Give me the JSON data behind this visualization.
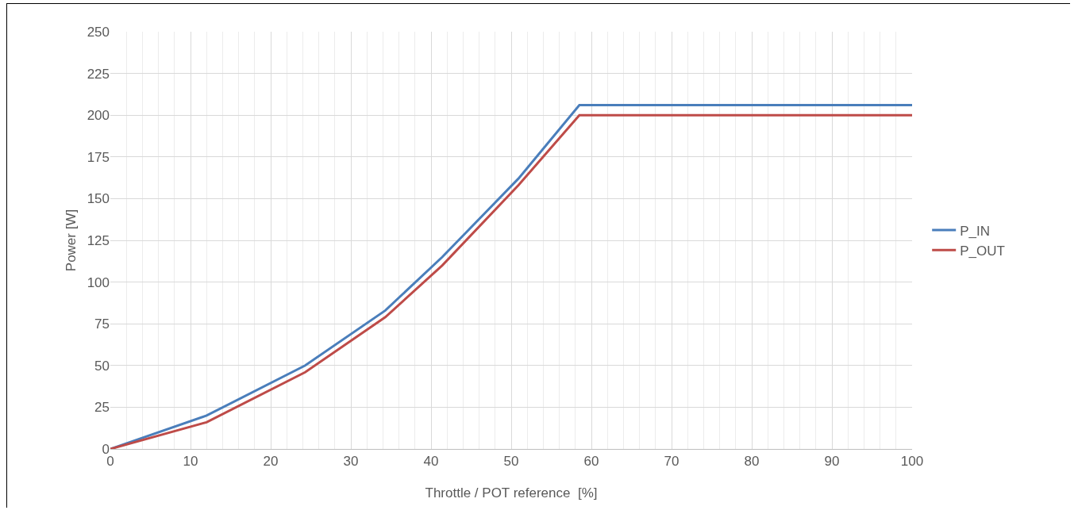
{
  "chart_data": {
    "type": "line",
    "xlabel": "Throttle / POT reference  [%]",
    "ylabel": "Power [W]",
    "x": [
      0,
      12,
      24.3,
      34.3,
      41.4,
      50.9,
      58.5,
      100
    ],
    "series": [
      {
        "name": "P_IN",
        "color": "#4a7ebb",
        "values": [
          0,
          20,
          50,
          83,
          115,
          162,
          206,
          206
        ]
      },
      {
        "name": "P_OUT",
        "color": "#be4b48",
        "values": [
          0,
          16,
          46,
          79,
          110,
          158,
          200,
          200
        ]
      }
    ],
    "xlim": [
      0,
      100
    ],
    "xticks": [
      0,
      10,
      20,
      30,
      40,
      50,
      60,
      70,
      80,
      90,
      100
    ],
    "ylim": [
      0,
      250
    ],
    "yticks": [
      0,
      25,
      50,
      75,
      100,
      125,
      150,
      175,
      200,
      225,
      250
    ],
    "grid": true,
    "legend": "right",
    "marker": "none",
    "line_style": "solid"
  }
}
